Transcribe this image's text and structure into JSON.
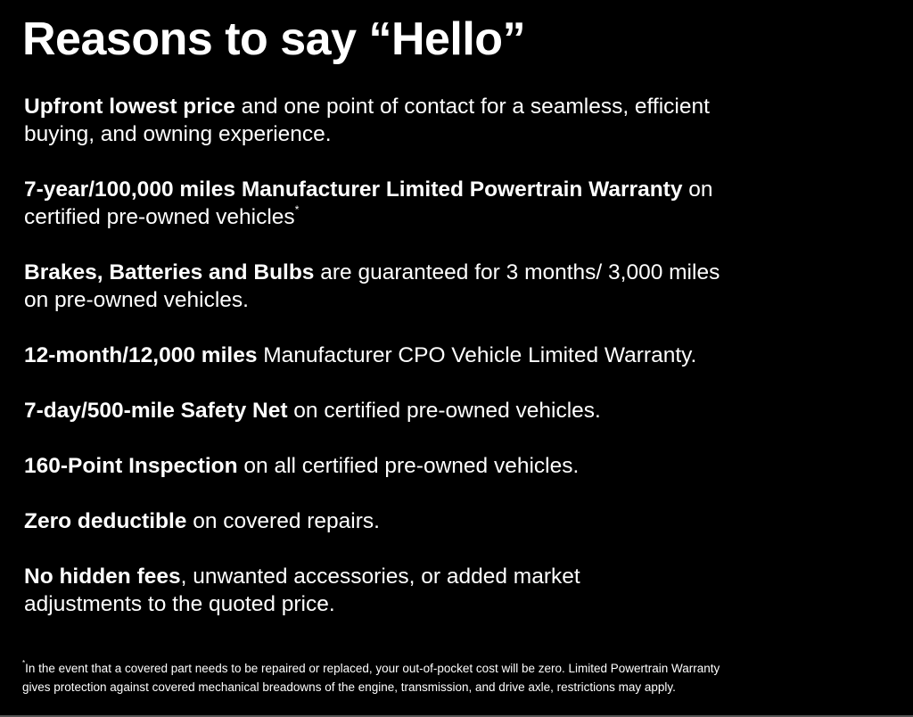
{
  "title": "Reasons to say “Hello”",
  "items": [
    {
      "bold": "Upfront lowest price",
      "line1": " and one point of contact for a seamless, efficient",
      "line2": "buying, and owning experience.",
      "marker": ""
    },
    {
      "bold": "7-year/100,000 miles Manufacturer Limited Powertrain Warranty",
      "line1": " on",
      "line2": "certified pre-owned vehicles",
      "marker": "*"
    },
    {
      "bold": "Brakes, Batteries and Bulbs",
      "line1": " are guaranteed for 3 months/ 3,000 miles",
      "line2": "on pre-owned vehicles.",
      "marker": ""
    },
    {
      "bold": "12-month/12,000 miles",
      "line1": " Manufacturer CPO Vehicle Limited Warranty.",
      "line2": "",
      "marker": ""
    },
    {
      "bold": "7-day/500-mile Safety Net",
      "line1": " on certified pre-owned vehicles.",
      "line2": "",
      "marker": ""
    },
    {
      "bold": "160-Point Inspection",
      "line1": " on all certified pre-owned vehicles.",
      "line2": "",
      "marker": ""
    },
    {
      "bold": "Zero deductible",
      "line1": " on covered repairs.",
      "line2": "",
      "marker": ""
    },
    {
      "bold": "No hidden fees",
      "line1": ", unwanted accessories, or added market",
      "line2": "adjustments to the quoted price.",
      "marker": ""
    }
  ],
  "footnote": {
    "marker": "*",
    "line1": "In the event that a covered part needs to be repaired or replaced, your out-of-pocket cost will be zero. Limited Powertrain Warranty",
    "line2": "gives protection against covered mechanical breadowns of the engine, transmission, and drive axle, restrictions may apply."
  }
}
